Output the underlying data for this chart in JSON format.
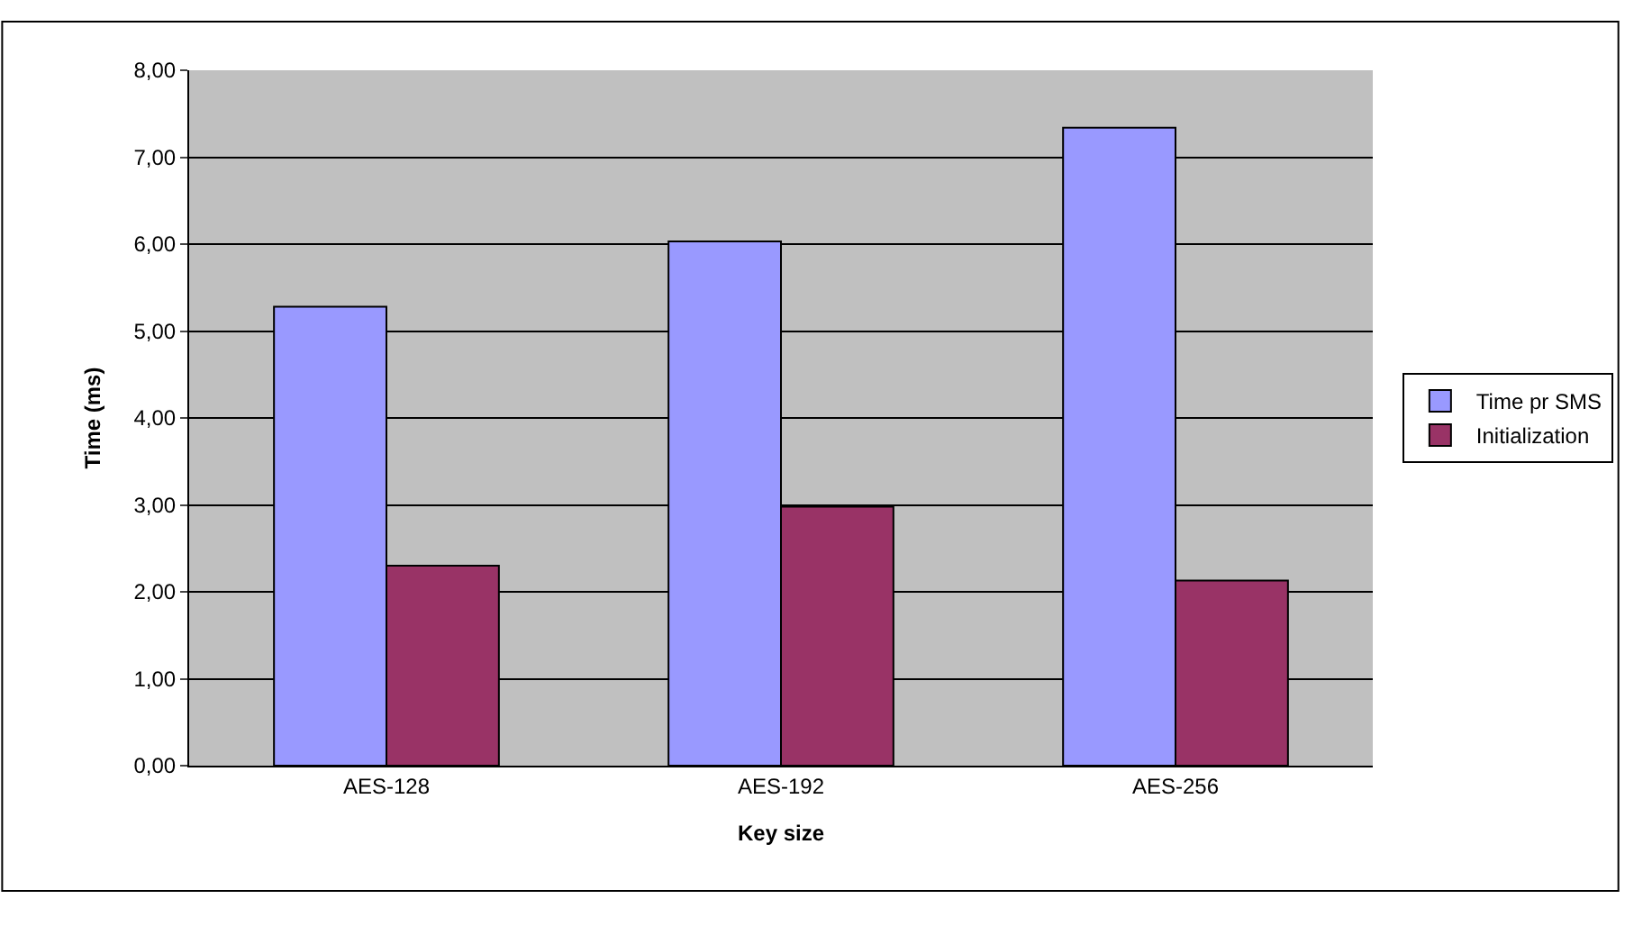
{
  "chart_data": {
    "type": "bar",
    "xlabel": "Key size",
    "ylabel": "Time (ms)",
    "categories": [
      "AES-128",
      "AES-192",
      "AES-256"
    ],
    "series": [
      {
        "name": "Time pr SMS",
        "color": "#9999ff",
        "values": [
          5.28,
          6.03,
          7.34
        ]
      },
      {
        "name": "Initialization",
        "color": "#993366",
        "values": [
          2.3,
          2.98,
          2.13
        ]
      }
    ],
    "ylim": [
      0,
      8
    ],
    "yticks": [
      {
        "value": 0,
        "label": "0,00"
      },
      {
        "value": 1,
        "label": "1,00"
      },
      {
        "value": 2,
        "label": "2,00"
      },
      {
        "value": 3,
        "label": "3,00"
      },
      {
        "value": 4,
        "label": "4,00"
      },
      {
        "value": 5,
        "label": "5,00"
      },
      {
        "value": 6,
        "label": "6,00"
      },
      {
        "value": 7,
        "label": "7,00"
      },
      {
        "value": 8,
        "label": "8,00"
      }
    ],
    "grid": "y",
    "legend": "right"
  }
}
